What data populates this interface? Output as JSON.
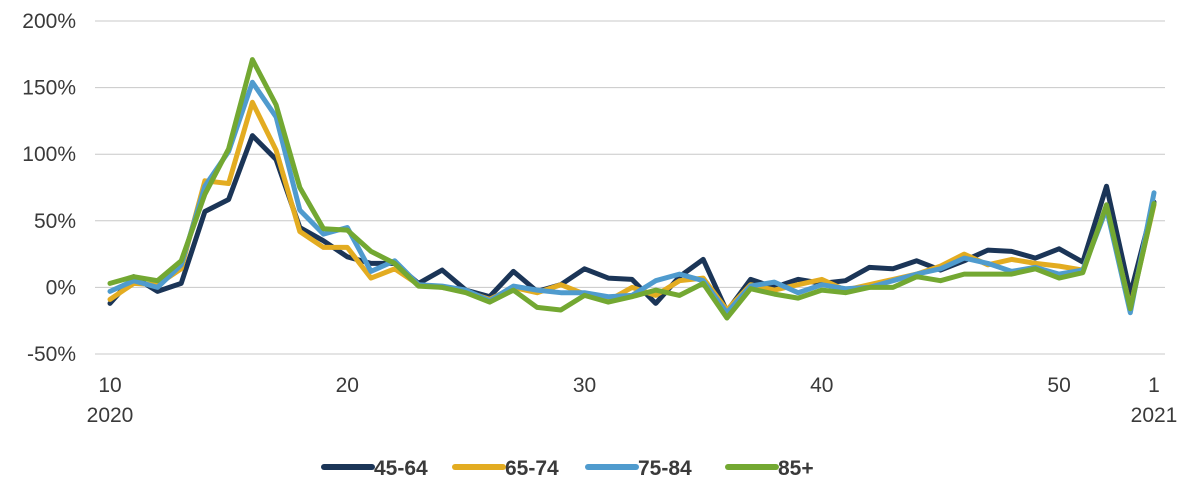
{
  "chart_data": {
    "type": "line",
    "title": "",
    "xlabel": "",
    "ylabel": "",
    "ylim": [
      -50,
      200
    ],
    "y_ticks": [
      {
        "value": 200,
        "label": "200%"
      },
      {
        "value": 150,
        "label": "150%"
      },
      {
        "value": 100,
        "label": "100%"
      },
      {
        "value": 50,
        "label": "50%"
      },
      {
        "value": 0,
        "label": "0%"
      },
      {
        "value": -50,
        "label": "-50%"
      }
    ],
    "x_ticks": [
      {
        "week": "2020-W10",
        "label": "10",
        "sublabel": "2020"
      },
      {
        "week": "2020-W20",
        "label": "20",
        "sublabel": ""
      },
      {
        "week": "2020-W30",
        "label": "30",
        "sublabel": ""
      },
      {
        "week": "2020-W40",
        "label": "40",
        "sublabel": ""
      },
      {
        "week": "2020-W50",
        "label": "50",
        "sublabel": ""
      },
      {
        "week": "2021-W01",
        "label": "1",
        "sublabel": "2021"
      }
    ],
    "x": [
      "2020-W10",
      "2020-W11",
      "2020-W12",
      "2020-W13",
      "2020-W14",
      "2020-W15",
      "2020-W16",
      "2020-W17",
      "2020-W18",
      "2020-W19",
      "2020-W20",
      "2020-W21",
      "2020-W22",
      "2020-W23",
      "2020-W24",
      "2020-W25",
      "2020-W26",
      "2020-W27",
      "2020-W28",
      "2020-W29",
      "2020-W30",
      "2020-W31",
      "2020-W32",
      "2020-W33",
      "2020-W34",
      "2020-W35",
      "2020-W36",
      "2020-W37",
      "2020-W38",
      "2020-W39",
      "2020-W40",
      "2020-W41",
      "2020-W42",
      "2020-W43",
      "2020-W44",
      "2020-W45",
      "2020-W46",
      "2020-W47",
      "2020-W48",
      "2020-W49",
      "2020-W50",
      "2020-W51",
      "2020-W52",
      "2020-W53",
      "2021-W01"
    ],
    "series": [
      {
        "name": "45-64",
        "color": "#1b3557",
        "values": [
          -12,
          8,
          -3,
          3,
          57,
          66,
          114,
          96,
          45,
          35,
          23,
          18,
          18,
          3,
          13,
          -2,
          -7,
          12,
          -3,
          2,
          14,
          7,
          6,
          -12,
          8,
          21,
          -18,
          6,
          0,
          6,
          3,
          5,
          15,
          14,
          20,
          13,
          20,
          28,
          27,
          22,
          29,
          19,
          76,
          -5,
          64
        ]
      },
      {
        "name": "65-74",
        "color": "#e3ac21",
        "values": [
          -9,
          3,
          2,
          14,
          80,
          78,
          139,
          103,
          42,
          30,
          30,
          7,
          14,
          2,
          0,
          -3,
          -9,
          0,
          -4,
          2,
          -5,
          -10,
          0,
          -6,
          5,
          7,
          -17,
          2,
          -2,
          2,
          6,
          -2,
          2,
          6,
          10,
          16,
          25,
          17,
          21,
          18,
          16,
          13,
          60,
          -15,
          62
        ]
      },
      {
        "name": "75-84",
        "color": "#4f9bce",
        "values": [
          -3,
          5,
          0,
          17,
          76,
          102,
          154,
          128,
          58,
          40,
          45,
          12,
          20,
          2,
          1,
          -2,
          -10,
          1,
          -2,
          -4,
          -4,
          -7,
          -6,
          5,
          10,
          5,
          -19,
          1,
          4,
          -4,
          2,
          -1,
          0,
          5,
          10,
          14,
          22,
          18,
          12,
          15,
          10,
          13,
          59,
          -19,
          71
        ]
      },
      {
        "name": "85+",
        "color": "#73a832",
        "values": [
          3,
          8,
          5,
          20,
          70,
          104,
          171,
          137,
          75,
          44,
          43,
          27,
          18,
          1,
          0,
          -4,
          -11,
          -2,
          -15,
          -17,
          -6,
          -11,
          -7,
          -2,
          -6,
          3,
          -23,
          -1,
          -5,
          -8,
          -2,
          -4,
          0,
          0,
          8,
          5,
          10,
          10,
          10,
          14,
          7,
          11,
          62,
          -16,
          63
        ]
      }
    ],
    "grid": "horizontal",
    "legend_position": "bottom-center"
  }
}
